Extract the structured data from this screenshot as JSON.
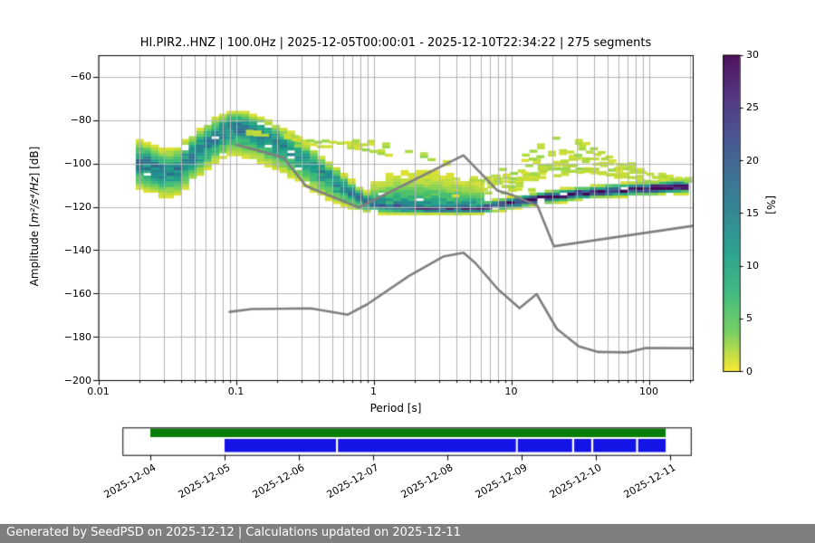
{
  "title": "HI.PIR2..HNZ | 100.0Hz | 2025-12-05T00:00:01 - 2025-12-10T22:34:22 | 275 segments",
  "axes": {
    "xlabel": "Period [s]",
    "ylabel_pre": "Amplitude [",
    "ylabel_math": "m²/s⁴/Hz",
    "ylabel_post": "] [dB]",
    "x_ticks": [
      {
        "value": 0.01,
        "label": "0.01"
      },
      {
        "value": 0.1,
        "label": "0.1"
      },
      {
        "value": 1,
        "label": "1"
      },
      {
        "value": 10,
        "label": "10"
      },
      {
        "value": 100,
        "label": "100"
      }
    ],
    "y_ticks": [
      {
        "value": -60,
        "label": "−60"
      },
      {
        "value": -80,
        "label": "−80"
      },
      {
        "value": -100,
        "label": "−100"
      },
      {
        "value": -120,
        "label": "−120"
      },
      {
        "value": -140,
        "label": "−140"
      },
      {
        "value": -160,
        "label": "−160"
      },
      {
        "value": -180,
        "label": "−180"
      },
      {
        "value": -200,
        "label": "−200"
      }
    ],
    "grid_color": "#b3b3b3",
    "frame_color": "#000000"
  },
  "colorbar": {
    "label": "[%]",
    "min": 0,
    "max": 30,
    "ticks": [
      0,
      5,
      10,
      15,
      20,
      25,
      30
    ],
    "stops": [
      [
        0.0,
        "#fde725"
      ],
      [
        0.125,
        "#6ece58"
      ],
      [
        0.25,
        "#35b779"
      ],
      [
        0.375,
        "#1f9e89"
      ],
      [
        0.5,
        "#26828e"
      ],
      [
        0.625,
        "#31688e"
      ],
      [
        0.75,
        "#3e4989"
      ],
      [
        0.875,
        "#482878"
      ],
      [
        1.0,
        "#440154"
      ]
    ]
  },
  "chart_data": {
    "type": "heatmap",
    "title": "HI.PIR2..HNZ | 100.0Hz | 2025-12-05T00:00:01 - 2025-12-10T22:34:22 | 275 segments",
    "xlabel": "Period [s]",
    "xscale": "log",
    "xlim": [
      0.01,
      208
    ],
    "ylabel": "Amplitude [m²/s⁴/Hz] [dB]",
    "ylim": [
      -200,
      -50
    ],
    "colorbar_label": "[%]",
    "prob_range_pct": [
      0,
      30
    ],
    "ppsd_distribution": {
      "comment": "per period: mode dB, sigma above, sigma below, peak probability %",
      "controls": [
        [
          0.019,
          -99.0,
          4.2,
          5.2,
          15
        ],
        [
          0.025,
          -101.5,
          4.2,
          5.2,
          16
        ],
        [
          0.03,
          -103.8,
          4.2,
          5.0,
          15
        ],
        [
          0.038,
          -102.5,
          4.2,
          5.0,
          15
        ],
        [
          0.05,
          -95.5,
          4.2,
          5.2,
          15
        ],
        [
          0.071,
          -87.0,
          3.4,
          5.4,
          16
        ],
        [
          0.093,
          -82.8,
          3.0,
          5.6,
          16
        ],
        [
          0.117,
          -83.2,
          3.0,
          5.8,
          16
        ],
        [
          0.158,
          -86.5,
          3.2,
          5.8,
          15
        ],
        [
          0.251,
          -93.5,
          3.4,
          5.6,
          13
        ],
        [
          0.398,
          -102.5,
          3.2,
          5.0,
          13
        ],
        [
          0.631,
          -112.0,
          2.6,
          3.6,
          14
        ],
        [
          0.891,
          -117.5,
          1.9,
          2.2,
          16
        ],
        [
          1.26,
          -119.8,
          1.5,
          1.4,
          20
        ],
        [
          2.0,
          -120.6,
          1.4,
          1.1,
          24
        ],
        [
          3.55,
          -120.9,
          1.3,
          1.0,
          26
        ],
        [
          6.03,
          -120.8,
          1.3,
          1.0,
          28
        ],
        [
          10.0,
          -118.4,
          1.2,
          1.1,
          29
        ],
        [
          17.8,
          -115.6,
          1.2,
          1.2,
          30
        ],
        [
          39.8,
          -113.1,
          1.2,
          1.2,
          30
        ],
        [
          100.0,
          -111.4,
          1.3,
          1.3,
          30
        ],
        [
          209.0,
          -110.3,
          1.4,
          1.4,
          30
        ]
      ],
      "upper_tail": [
        [
          1.0,
          -109.0
        ],
        [
          1.41,
          -104.8
        ],
        [
          2.24,
          -103.3
        ],
        [
          3.55,
          -105.5
        ],
        [
          5.25,
          -108.5
        ],
        [
          6.61,
          -111.0
        ]
      ]
    },
    "outlier_curves": [
      [
        [
          0.126,
          -86.8
        ],
        [
          0.2,
          -88.0
        ],
        [
          0.316,
          -89.2
        ],
        [
          0.501,
          -90.2
        ],
        [
          0.794,
          -90.8
        ],
        [
          1.12,
          -91.5
        ],
        [
          1.58,
          -93.5
        ],
        [
          2.51,
          -97.5
        ],
        [
          3.55,
          -101.0
        ],
        [
          4.79,
          -104.0
        ]
      ],
      [
        [
          0.282,
          -91.5
        ],
        [
          0.447,
          -92.3
        ],
        [
          0.708,
          -93.2
        ],
        [
          1.0,
          -94.5
        ],
        [
          1.41,
          -96.5
        ]
      ],
      [
        [
          5.25,
          -111.0
        ],
        [
          8.91,
          -103.0
        ],
        [
          14.1,
          -95.0
        ],
        [
          21.4,
          -88.6
        ],
        [
          28.2,
          -88.9
        ],
        [
          39.8,
          -93.0
        ],
        [
          63.1,
          -99.5
        ],
        [
          100.0,
          -104.5
        ],
        [
          151.0,
          -107.5
        ]
      ],
      [
        [
          6.31,
          -112.5
        ],
        [
          11.2,
          -104.0
        ],
        [
          20.0,
          -95.5
        ],
        [
          30.2,
          -92.8
        ],
        [
          44.7,
          -96.5
        ],
        [
          70.8,
          -102.0
        ],
        [
          126.0,
          -106.5
        ],
        [
          200.0,
          -108.0
        ]
      ],
      [
        [
          8.91,
          -113.0
        ],
        [
          15.8,
          -106.0
        ],
        [
          26.3,
          -98.5
        ],
        [
          38.0,
          -97.8
        ],
        [
          56.2,
          -101.5
        ],
        [
          100.0,
          -105.5
        ],
        [
          178.0,
          -107.8
        ]
      ],
      [
        [
          4.17,
          -109.5
        ],
        [
          7.08,
          -107.0
        ],
        [
          11.2,
          -109.0
        ],
        [
          17.8,
          -106.5
        ],
        [
          31.6,
          -103.5
        ],
        [
          50.1,
          -105.0
        ],
        [
          89.1,
          -107.5
        ]
      ],
      [
        [
          10.0,
          -111.0
        ],
        [
          17.8,
          -101.5
        ],
        [
          25.1,
          -100.5
        ],
        [
          35.5,
          -103.0
        ],
        [
          63.1,
          -106.0
        ],
        [
          112.0,
          -108.5
        ]
      ],
      [
        [
          12.6,
          -99.0
        ],
        [
          17.8,
          -96.8
        ],
        [
          26.3,
          -94.5
        ],
        [
          35.5,
          -99.0
        ]
      ],
      [
        [
          7.08,
          -109.0
        ],
        [
          12.6,
          -106.0
        ],
        [
          22.4,
          -102.0
        ],
        [
          39.8,
          -100.5
        ],
        [
          63.1,
          -103.5
        ]
      ]
    ],
    "outlier_scatter": {
      "n": 45,
      "period_range": [
        3.16,
        14.1
      ],
      "db_range": [
        -115,
        -104
      ]
    },
    "noise_models": {
      "color": "#7f7f7f",
      "nhnm": [
        [
          0.1,
          -91.3
        ],
        [
          0.221,
          -97.2
        ],
        [
          0.324,
          -110.5
        ],
        [
          0.782,
          -120.3
        ],
        [
          4.5,
          -96.2
        ],
        [
          6.89,
          -108.3
        ],
        [
          7.94,
          -112.5
        ],
        [
          10.2,
          -114.6
        ],
        [
          15.5,
          -119.4
        ],
        [
          20.4,
          -138.2
        ],
        [
          208.0,
          -128.8
        ]
      ],
      "nlnm": [
        [
          0.09,
          -168.5
        ],
        [
          0.13,
          -167.2
        ],
        [
          0.35,
          -166.9
        ],
        [
          0.65,
          -169.8
        ],
        [
          0.9,
          -165.0
        ],
        [
          1.8,
          -152.0
        ],
        [
          3.2,
          -143.0
        ],
        [
          4.5,
          -141.2
        ],
        [
          5.5,
          -146.0
        ],
        [
          8.0,
          -158.0
        ],
        [
          11.5,
          -166.8
        ],
        [
          15.3,
          -160.3
        ],
        [
          21.5,
          -176.4
        ],
        [
          31.0,
          -184.4
        ],
        [
          43.0,
          -187.0
        ],
        [
          70.0,
          -187.2
        ],
        [
          95.0,
          -185.2
        ],
        [
          208.0,
          -185.3
        ]
      ]
    }
  },
  "timeline": {
    "axis_start": "2025-12-03T15:00",
    "axis_end": "2025-12-11T06:40",
    "tick_dates": [
      "2025-12-04",
      "2025-12-05",
      "2025-12-06",
      "2025-12-07",
      "2025-12-08",
      "2025-12-09",
      "2025-12-10",
      "2025-12-11"
    ],
    "data_coverage": {
      "color": "#0a7e0a",
      "start": "2025-12-04T00:00",
      "end": "2025-12-10T22:34"
    },
    "psd_coverage": {
      "color": "#1414e6",
      "segments": [
        [
          "2025-12-05T00:00",
          "2025-12-06T12:00"
        ],
        [
          "2025-12-06T12:40",
          "2025-12-08T22:10"
        ],
        [
          "2025-12-08T22:45",
          "2025-12-09T16:20"
        ],
        [
          "2025-12-09T17:00",
          "2025-12-09T22:30"
        ],
        [
          "2025-12-09T23:10",
          "2025-12-10T13:00"
        ],
        [
          "2025-12-10T13:40",
          "2025-12-10T22:34"
        ]
      ]
    }
  },
  "footer": {
    "text": "Generated by SeedPSD on 2025-12-12 | Calculations updated on 2025-12-11",
    "bg": "#7f7f7f"
  }
}
